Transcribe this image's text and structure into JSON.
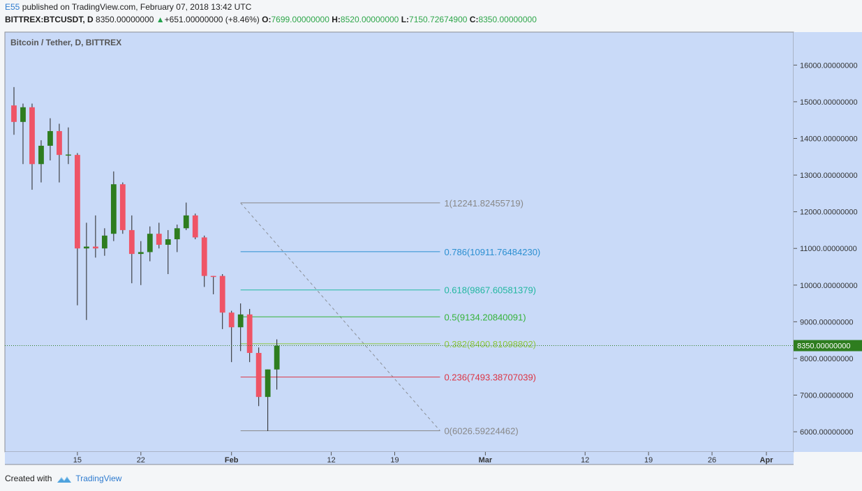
{
  "header": {
    "author": "E55",
    "published_text": " published on TradingView.com, February 07, 2018 13:42 UTC",
    "symbol_line": "BITTREX:BTCUSDT, D",
    "last": "8350.00000000",
    "change": "+651.00000000 (+8.46%)",
    "o_label": "O:",
    "o": "7699.00000000",
    "h_label": "H:",
    "h": "8520.00000000",
    "l_label": "L:",
    "l": "7150.72674900",
    "c_label": "C:",
    "c": "8350.00000000"
  },
  "footer": {
    "created_with": "Created with",
    "brand": "TradingView"
  },
  "colors": {
    "bull": "#2e7d1f",
    "bear": "#ef5466",
    "pane": "#c9daf8",
    "wick": "#222222"
  },
  "chart_data": {
    "type": "candlestick",
    "title": "Bitcoin / Tether, D, BITTREX",
    "y_ticks": [
      "16000.00000000",
      "15000.00000000",
      "14000.00000000",
      "13000.00000000",
      "12000.00000000",
      "11000.00000000",
      "10000.00000000",
      "9000.00000000",
      "8000.00000000",
      "7000.00000000",
      "6000.00000000"
    ],
    "y_tick_values": [
      16000,
      15000,
      14000,
      13000,
      12000,
      11000,
      10000,
      9000,
      8000,
      7000,
      6000
    ],
    "ylim": [
      5450,
      16900
    ],
    "x_ticks": [
      "15",
      "22",
      "Feb",
      "12",
      "19",
      "Mar",
      "12",
      "19",
      "26",
      "Apr"
    ],
    "x_tick_dates": [
      "2018-01-15",
      "2018-01-22",
      "2018-02-01",
      "2018-02-12",
      "2018-02-19",
      "2018-03-01",
      "2018-03-12",
      "2018-03-19",
      "2018-03-26",
      "2018-04-01"
    ],
    "xlim": [
      "2018-01-07",
      "2018-04-04"
    ],
    "last_price_label": "8350.00000000",
    "last_price": 8350,
    "candles": [
      {
        "date": "2018-01-08",
        "o": 14900,
        "h": 15400,
        "l": 14100,
        "c": 14450
      },
      {
        "date": "2018-01-09",
        "o": 14450,
        "h": 14950,
        "l": 13300,
        "c": 14850
      },
      {
        "date": "2018-01-10",
        "o": 14850,
        "h": 14950,
        "l": 12600,
        "c": 13300
      },
      {
        "date": "2018-01-11",
        "o": 13300,
        "h": 13950,
        "l": 12800,
        "c": 13800
      },
      {
        "date": "2018-01-12",
        "o": 13800,
        "h": 14550,
        "l": 13400,
        "c": 14200
      },
      {
        "date": "2018-01-13",
        "o": 14200,
        "h": 14400,
        "l": 12800,
        "c": 13550
      },
      {
        "date": "2018-01-14",
        "o": 13550,
        "h": 14300,
        "l": 13300,
        "c": 13560
      },
      {
        "date": "2018-01-15",
        "o": 13550,
        "h": 13600,
        "l": 9450,
        "c": 11000
      },
      {
        "date": "2018-01-16",
        "o": 11000,
        "h": 11700,
        "l": 9050,
        "c": 11050
      },
      {
        "date": "2018-01-17",
        "o": 11050,
        "h": 11900,
        "l": 10750,
        "c": 11000
      },
      {
        "date": "2018-01-18",
        "o": 11000,
        "h": 11550,
        "l": 10800,
        "c": 11350
      },
      {
        "date": "2018-01-19",
        "o": 11400,
        "h": 13100,
        "l": 11200,
        "c": 12750
      },
      {
        "date": "2018-01-20",
        "o": 12750,
        "h": 12800,
        "l": 11400,
        "c": 11500
      },
      {
        "date": "2018-01-21",
        "o": 11500,
        "h": 11900,
        "l": 10050,
        "c": 10850
      },
      {
        "date": "2018-01-22",
        "o": 10850,
        "h": 11200,
        "l": 10000,
        "c": 10900
      },
      {
        "date": "2018-01-23",
        "o": 10900,
        "h": 11600,
        "l": 10650,
        "c": 11400
      },
      {
        "date": "2018-01-24",
        "o": 11400,
        "h": 11700,
        "l": 11000,
        "c": 11100
      },
      {
        "date": "2018-01-25",
        "o": 11100,
        "h": 11500,
        "l": 10300,
        "c": 11250
      },
      {
        "date": "2018-01-26",
        "o": 11250,
        "h": 11650,
        "l": 10900,
        "c": 11550
      },
      {
        "date": "2018-01-27",
        "o": 11550,
        "h": 12250,
        "l": 11500,
        "c": 11900
      },
      {
        "date": "2018-01-28",
        "o": 11900,
        "h": 11950,
        "l": 11250,
        "c": 11300
      },
      {
        "date": "2018-01-29",
        "o": 11300,
        "h": 11350,
        "l": 9950,
        "c": 10250
      },
      {
        "date": "2018-01-30",
        "o": 10250,
        "h": 10250,
        "l": 9750,
        "c": 10230
      },
      {
        "date": "2018-01-31",
        "o": 10250,
        "h": 10300,
        "l": 8800,
        "c": 9250
      },
      {
        "date": "2018-02-01",
        "o": 9250,
        "h": 9300,
        "l": 7900,
        "c": 8850
      },
      {
        "date": "2018-02-02",
        "o": 8850,
        "h": 9500,
        "l": 8200,
        "c": 9200
      },
      {
        "date": "2018-02-03",
        "o": 9200,
        "h": 9350,
        "l": 7900,
        "c": 8150
      },
      {
        "date": "2018-02-04",
        "o": 8150,
        "h": 8300,
        "l": 6700,
        "c": 6950
      },
      {
        "date": "2018-02-05",
        "o": 6950,
        "h": 7700,
        "l": 6020,
        "c": 7700
      },
      {
        "date": "2018-02-06",
        "o": 7699,
        "h": 8520,
        "l": 7150.73,
        "c": 8350
      }
    ],
    "fibonacci": {
      "start": {
        "date": "2018-02-02",
        "price": 12241.82455719
      },
      "end": {
        "date": "2018-02-24",
        "price": 6026.59224462
      },
      "levels": [
        {
          "ratio": 1,
          "price": 12241.82455719,
          "label": "1(12241.82455719)",
          "color": "#888888"
        },
        {
          "ratio": 0.786,
          "price": 10911.7648423,
          "label": "0.786(10911.76484230)",
          "color": "#2b8fd1"
        },
        {
          "ratio": 0.618,
          "price": 9867.60581379,
          "label": "0.618(9867.60581379)",
          "color": "#22b7a0"
        },
        {
          "ratio": 0.5,
          "price": 9134.20840091,
          "label": "0.5(9134.20840091)",
          "color": "#35b33a"
        },
        {
          "ratio": 0.382,
          "price": 8400.81098802,
          "label": "0.382(8400.81098802)",
          "color": "#8cc63f"
        },
        {
          "ratio": 0.236,
          "price": 7493.38707039,
          "label": "0.236(7493.38707039)",
          "color": "#dc3545"
        },
        {
          "ratio": 0,
          "price": 6026.59224462,
          "label": "0(6026.59224462)",
          "color": "#888888"
        }
      ]
    }
  }
}
